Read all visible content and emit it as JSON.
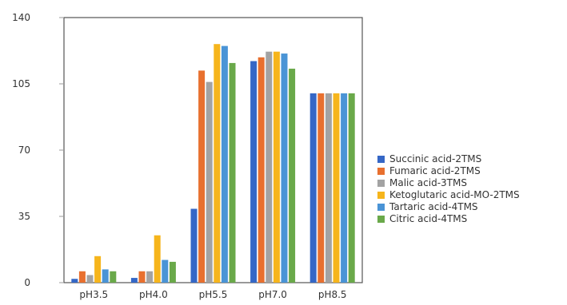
{
  "chart_data": {
    "type": "bar",
    "title": "",
    "xlabel": "",
    "ylabel": "",
    "categories": [
      "pH3.5",
      "pH4.0",
      "pH5.5",
      "pH7.0",
      "pH8.5"
    ],
    "ylim": [
      0,
      140
    ],
    "yticks": [
      0,
      35,
      70,
      105,
      140
    ],
    "grid": false,
    "legend_position": "right",
    "series": [
      {
        "name": "Succinic acid-2TMS",
        "color": "#3567c6",
        "values": [
          2,
          2.5,
          39,
          117,
          100
        ]
      },
      {
        "name": "Fumaric acid-2TMS",
        "color": "#e8702f",
        "values": [
          6,
          6,
          112,
          119,
          100
        ]
      },
      {
        "name": "Malic acid-3TMS",
        "color": "#a3a3a3",
        "values": [
          4,
          6,
          106,
          122,
          100
        ]
      },
      {
        "name": "Ketoglutaric acid-MO-2TMS",
        "color": "#f6b51c",
        "values": [
          14,
          25,
          126,
          122,
          100
        ]
      },
      {
        "name": "Tartaric acid-4TMS",
        "color": "#4a94d6",
        "values": [
          7,
          12,
          125,
          121,
          100
        ]
      },
      {
        "name": "Citric acid-4TMS",
        "color": "#6aa94a",
        "values": [
          6,
          11,
          116,
          113,
          100
        ]
      }
    ]
  }
}
